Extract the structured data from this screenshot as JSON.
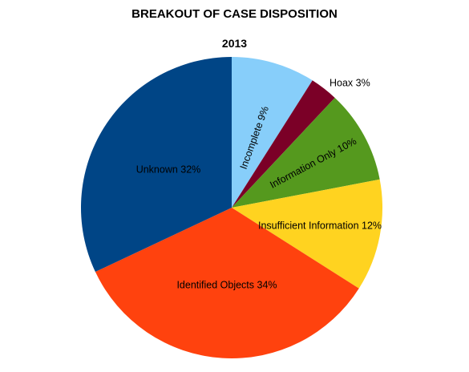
{
  "chart_data": {
    "type": "pie",
    "title": "BREAKOUT OF CASE DISPOSITION",
    "subtitle": "2013",
    "legend": "none",
    "slices": [
      {
        "label": "Incomplete 9%",
        "value": 9,
        "color": "#87CEFA"
      },
      {
        "label": "Hoax 3%",
        "value": 3,
        "color": "#7B0027"
      },
      {
        "label": "Information Only 10%",
        "value": 10,
        "color": "#55991E"
      },
      {
        "label": "Insufficient Information 12%",
        "value": 12,
        "color": "#FFD320"
      },
      {
        "label": "Identified Objects 34%",
        "value": 34,
        "color": "#FF420E"
      },
      {
        "label": "Unknown 32%",
        "value": 32,
        "color": "#004586"
      }
    ]
  }
}
